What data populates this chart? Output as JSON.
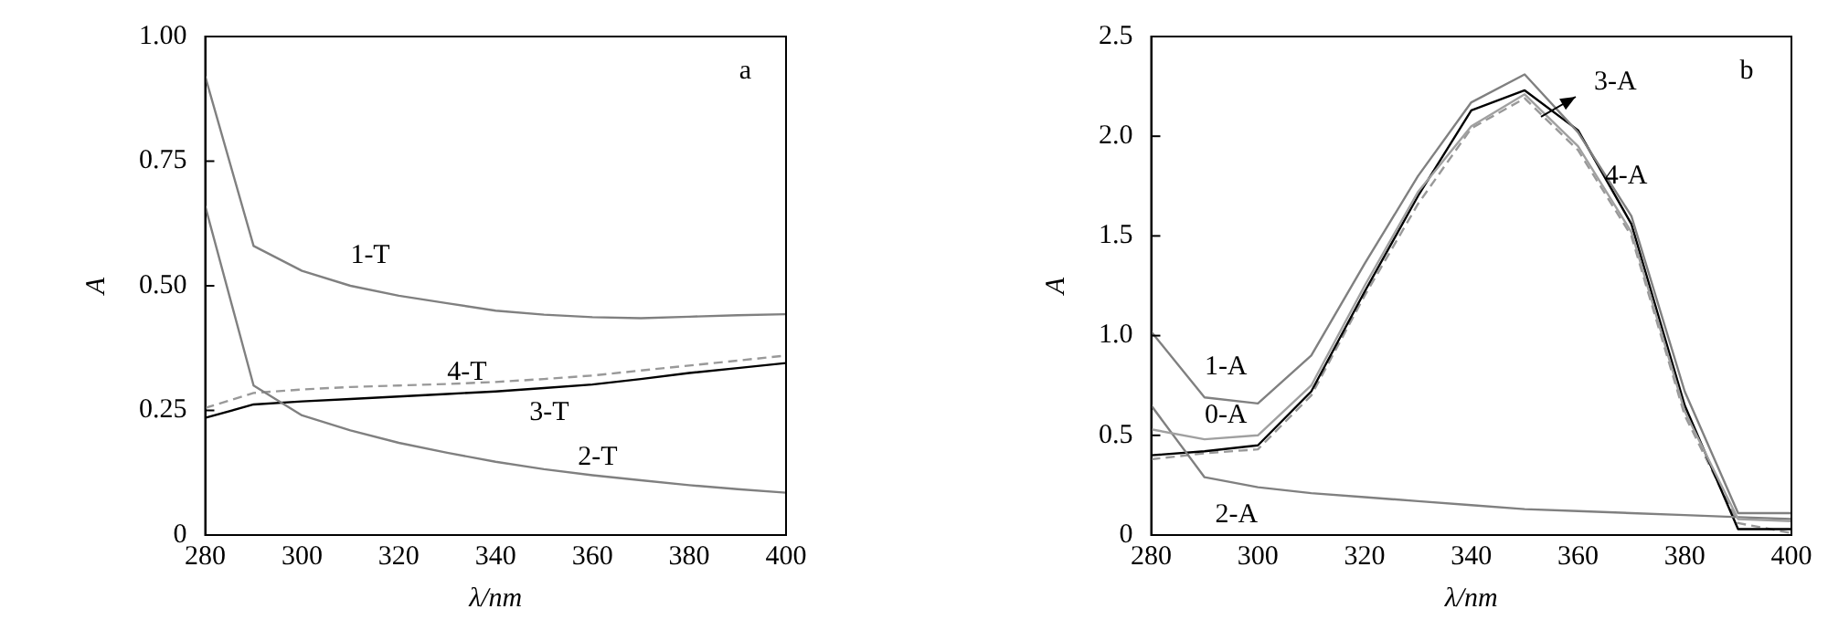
{
  "chart_data": [
    {
      "type": "line",
      "xlabel": "λ/nm",
      "ylabel": "A",
      "annotations": [
        "a"
      ],
      "x": [
        280,
        290,
        300,
        310,
        320,
        330,
        340,
        350,
        360,
        370,
        380,
        390,
        400
      ],
      "xlim": [
        280,
        400
      ],
      "xticks": [
        280,
        300,
        320,
        340,
        360,
        380,
        400
      ],
      "ylim": [
        0,
        1
      ],
      "yticks": [
        {
          "value": 0,
          "label": "0"
        },
        {
          "value": 0.25,
          "label": "0.25"
        },
        {
          "value": 0.5,
          "label": "0.50"
        },
        {
          "value": 0.75,
          "label": "0.75"
        },
        {
          "value": 1,
          "label": "1.00"
        }
      ],
      "grid": false,
      "legend": false,
      "marker": "none",
      "series": [
        {
          "name": "1-T",
          "color": "#808080",
          "line_style": "solid",
          "values": [
            0.92,
            0.58,
            0.53,
            0.5,
            0.48,
            0.465,
            0.45,
            0.442,
            0.437,
            0.435,
            0.438,
            0.441,
            0.443
          ]
        },
        {
          "name": "2-T",
          "color": "#808080",
          "line_style": "solid",
          "values": [
            0.66,
            0.3,
            0.24,
            0.21,
            0.185,
            0.165,
            0.147,
            0.132,
            0.12,
            0.11,
            0.1,
            0.092,
            0.085
          ]
        },
        {
          "name": "3-T",
          "color": "#000000",
          "line_style": "solid",
          "values": [
            0.235,
            0.262,
            0.268,
            0.273,
            0.278,
            0.283,
            0.288,
            0.295,
            0.302,
            0.313,
            0.325,
            0.335,
            0.345
          ]
        },
        {
          "name": "4-T",
          "color": "#999999",
          "line_style": "dashed",
          "values": [
            0.255,
            0.285,
            0.292,
            0.297,
            0.3,
            0.303,
            0.307,
            0.313,
            0.32,
            0.33,
            0.34,
            0.35,
            0.36
          ]
        }
      ]
    },
    {
      "type": "line",
      "xlabel": "λ/nm",
      "ylabel": "A",
      "annotations": [
        "b"
      ],
      "x": [
        280,
        290,
        300,
        310,
        320,
        330,
        340,
        350,
        360,
        370,
        380,
        390,
        400
      ],
      "xlim": [
        280,
        400
      ],
      "xticks": [
        280,
        300,
        320,
        340,
        360,
        380,
        400
      ],
      "ylim": [
        0,
        2.5
      ],
      "yticks": [
        {
          "value": 0,
          "label": "0"
        },
        {
          "value": 0.5,
          "label": "0.5"
        },
        {
          "value": 1,
          "label": "1.0"
        },
        {
          "value": 1.5,
          "label": "1.5"
        },
        {
          "value": 2,
          "label": "2.0"
        },
        {
          "value": 2.5,
          "label": "2.5"
        }
      ],
      "grid": false,
      "legend": false,
      "marker": "none",
      "series": [
        {
          "name": "0-A",
          "color": "#a0a0a0",
          "line_style": "solid",
          "values": [
            0.53,
            0.48,
            0.5,
            0.75,
            1.25,
            1.72,
            2.05,
            2.21,
            1.95,
            1.52,
            0.62,
            0.08,
            0.07
          ]
        },
        {
          "name": "1-A",
          "color": "#808080",
          "line_style": "solid",
          "values": [
            1.02,
            0.69,
            0.66,
            0.9,
            1.36,
            1.8,
            2.17,
            2.31,
            2.02,
            1.6,
            0.72,
            0.11,
            0.11
          ]
        },
        {
          "name": "2-A",
          "color": "#808080",
          "line_style": "solid",
          "values": [
            0.65,
            0.29,
            0.24,
            0.21,
            0.19,
            0.17,
            0.15,
            0.13,
            0.12,
            0.11,
            0.1,
            0.09,
            0.08
          ]
        },
        {
          "name": "3-A",
          "color": "#000000",
          "line_style": "solid",
          "values": [
            0.4,
            0.42,
            0.45,
            0.72,
            1.22,
            1.7,
            2.13,
            2.23,
            2.03,
            1.56,
            0.65,
            0.03,
            0.03
          ]
        },
        {
          "name": "4-A",
          "color": "#999999",
          "line_style": "dashed",
          "values": [
            0.38,
            0.41,
            0.43,
            0.7,
            1.2,
            1.66,
            2.04,
            2.19,
            1.93,
            1.5,
            0.6,
            0.06,
            0.01
          ]
        }
      ]
    }
  ]
}
